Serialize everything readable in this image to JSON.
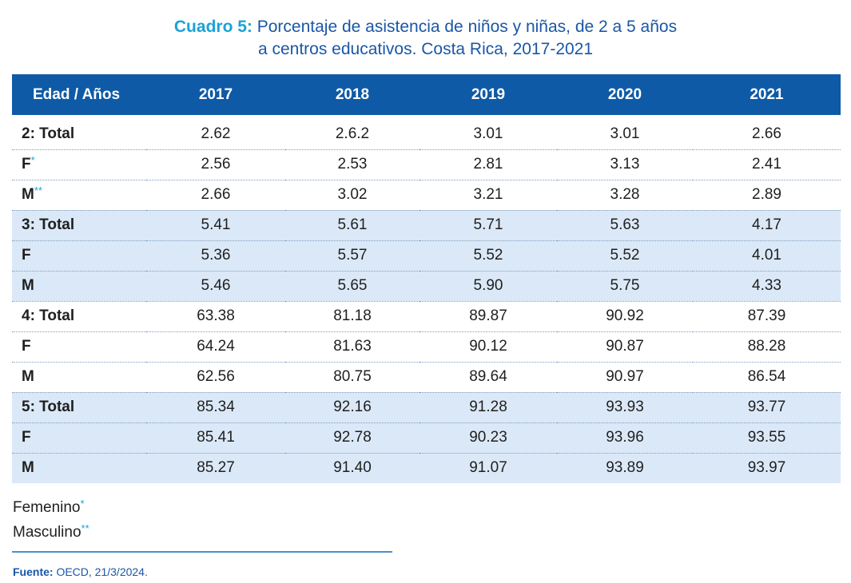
{
  "title": {
    "label": "Cuadro 5:",
    "line1": " Porcentaje de asistencia de niños y niñas, de 2 a 5 años",
    "line2": "a centros educativos. Costa Rica, 2017-2021"
  },
  "table": {
    "header": [
      "Edad / Años",
      "2017",
      "2018",
      "2019",
      "2020",
      "2021"
    ],
    "rows": [
      {
        "label": "2: Total",
        "mark": "",
        "values": [
          "2.62",
          "2.6.2",
          "3.01",
          "3.01",
          "2.66"
        ]
      },
      {
        "label": "F",
        "mark": "*",
        "values": [
          "2.56",
          "2.53",
          "2.81",
          "3.13",
          "2.41"
        ]
      },
      {
        "label": "M",
        "mark": "**",
        "values": [
          "2.66",
          "3.02",
          "3.21",
          "3.28",
          "2.89"
        ]
      },
      {
        "label": "3: Total",
        "mark": "",
        "values": [
          "5.41",
          "5.61",
          "5.71",
          "5.63",
          "4.17"
        ]
      },
      {
        "label": "F",
        "mark": "",
        "values": [
          "5.36",
          "5.57",
          "5.52",
          "5.52",
          "4.01"
        ]
      },
      {
        "label": "M",
        "mark": "",
        "values": [
          "5.46",
          "5.65",
          "5.90",
          "5.75",
          "4.33"
        ]
      },
      {
        "label": "4: Total",
        "mark": "",
        "values": [
          "63.38",
          "81.18",
          "89.87",
          "90.92",
          "87.39"
        ]
      },
      {
        "label": "F",
        "mark": "",
        "values": [
          "64.24",
          "81.63",
          "90.12",
          "90.87",
          "88.28"
        ]
      },
      {
        "label": "M",
        "mark": "",
        "values": [
          "62.56",
          "80.75",
          "89.64",
          "90.97",
          "86.54"
        ]
      },
      {
        "label": "5: Total",
        "mark": "",
        "values": [
          "85.34",
          "92.16",
          "91.28",
          "93.93",
          "93.77"
        ]
      },
      {
        "label": "F",
        "mark": "",
        "values": [
          "85.41",
          "92.78",
          "90.23",
          "93.96",
          "93.55"
        ]
      },
      {
        "label": "M",
        "mark": "",
        "values": [
          "85.27",
          "91.40",
          "91.07",
          "93.89",
          "93.97"
        ]
      }
    ]
  },
  "legend": {
    "female": {
      "text": "Femenino",
      "mark": "*"
    },
    "male": {
      "text": "Masculino",
      "mark": "**"
    }
  },
  "source": {
    "label": "Fuente:",
    "text": " OECD, 21/3/2024."
  },
  "colors": {
    "header_bg": "#0f5aa6",
    "shaded_bg": "#dbe8f7",
    "accent": "#1aa3d6",
    "title": "#1a57a6"
  }
}
